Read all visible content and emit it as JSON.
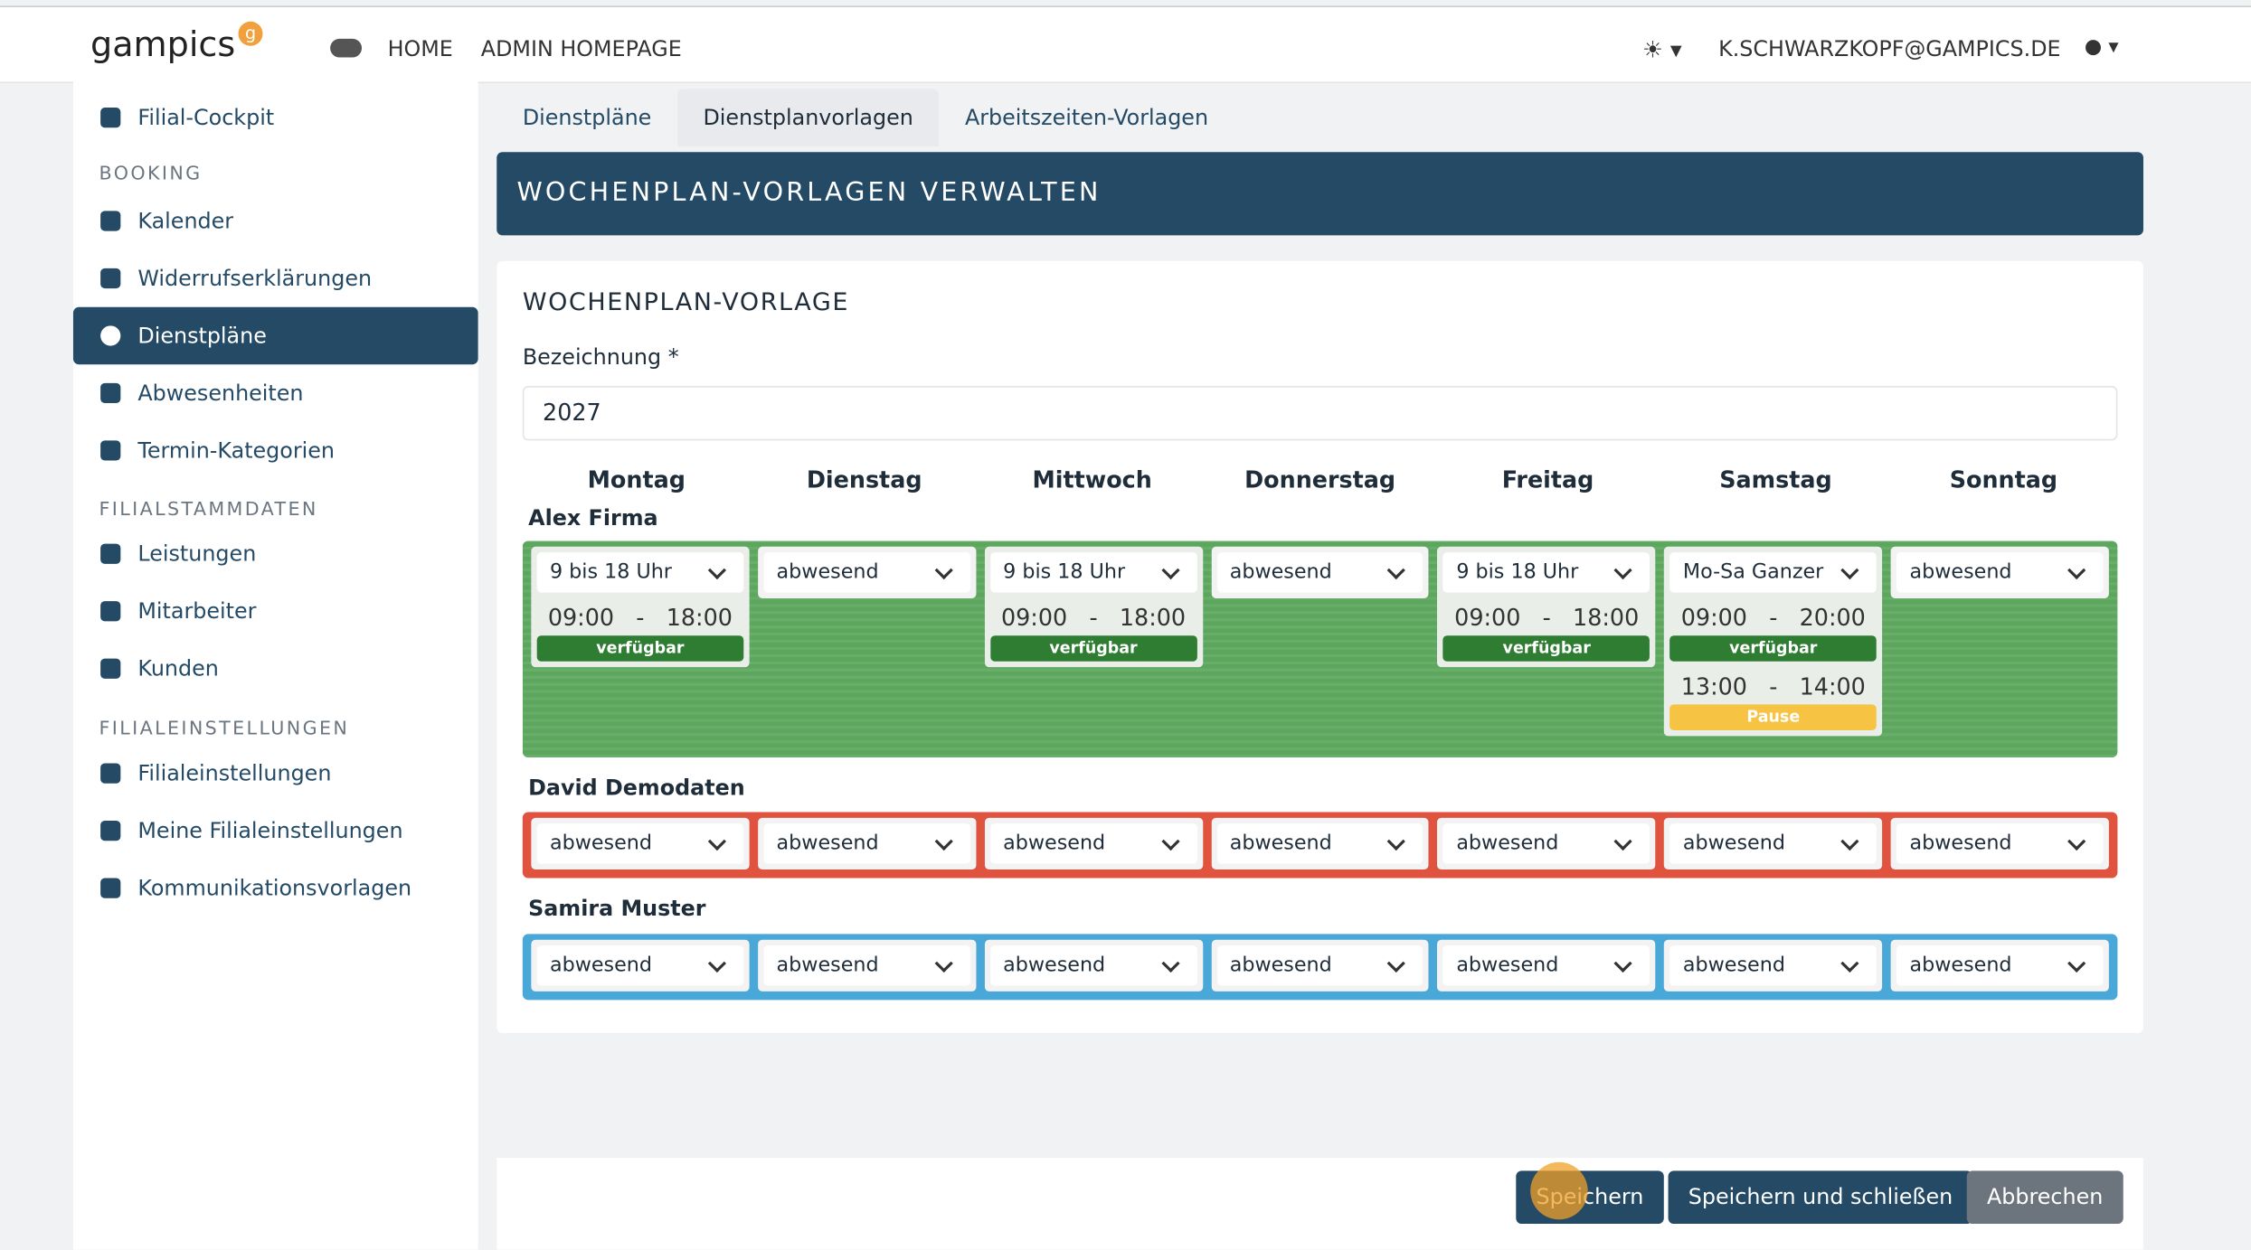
{
  "header": {
    "logo": "gampics",
    "logo_badge": "g",
    "nav": [
      "HOME",
      "ADMIN HOMEPAGE"
    ],
    "user": "K.SCHWARZKOPF@GAMPICS.DE"
  },
  "sidebar": {
    "entries": [
      {
        "label": "Filial-Cockpit"
      },
      {
        "heading": "BOOKING"
      },
      {
        "label": "Kalender"
      },
      {
        "label": "Widerrufserklärungen"
      },
      {
        "label": "Dienstpläne",
        "active": true
      },
      {
        "label": "Abwesenheiten"
      },
      {
        "label": "Termin-Kategorien"
      },
      {
        "heading": "FILIALSTAMMDATEN"
      },
      {
        "label": "Leistungen"
      },
      {
        "label": "Mitarbeiter"
      },
      {
        "label": "Kunden"
      },
      {
        "heading": "FILIALEINSTELLUNGEN"
      },
      {
        "label": "Filialeinstellungen"
      },
      {
        "label": "Meine Filialeinstellungen"
      },
      {
        "label": "Kommunikationsvorlagen"
      }
    ]
  },
  "tabs": [
    {
      "label": "Dienstpläne"
    },
    {
      "label": "Dienstplanvorlagen",
      "active": true
    },
    {
      "label": "Arbeitszeiten-Vorlagen"
    }
  ],
  "panel_title": "WOCHENPLAN-VORLAGEN VERWALTEN",
  "form": {
    "heading": "WOCHENPLAN-VORLAGE",
    "field_label": "Bezeichnung *",
    "field_value": "2027",
    "days": [
      "Montag",
      "Dienstag",
      "Mittwoch",
      "Donnerstag",
      "Freitag",
      "Samstag",
      "Sonntag"
    ],
    "employees": [
      {
        "name": "Alex Firma",
        "color": "#5ca65e",
        "cells": [
          {
            "select": "9 bis 18 Uhr",
            "slots": [
              {
                "start": "09:00",
                "sep": "-",
                "end": "18:00",
                "status": "verfügbar"
              }
            ]
          },
          {
            "select": "abwesend"
          },
          {
            "select": "9 bis 18 Uhr",
            "slots": [
              {
                "start": "09:00",
                "sep": "-",
                "end": "18:00",
                "status": "verfügbar"
              }
            ]
          },
          {
            "select": "abwesend"
          },
          {
            "select": "9 bis 18 Uhr",
            "slots": [
              {
                "start": "09:00",
                "sep": "-",
                "end": "18:00",
                "status": "verfügbar"
              }
            ]
          },
          {
            "select": "Mo-Sa Ganzer",
            "slots": [
              {
                "start": "09:00",
                "sep": "-",
                "end": "20:00",
                "status": "verfügbar"
              },
              {
                "start": "13:00",
                "sep": "-",
                "end": "14:00",
                "status": "Pause"
              }
            ]
          },
          {
            "select": "abwesend"
          }
        ]
      },
      {
        "name": "David Demodaten",
        "color": "#e0533f",
        "cells": [
          {
            "select": "abwesend"
          },
          {
            "select": "abwesend"
          },
          {
            "select": "abwesend"
          },
          {
            "select": "abwesend"
          },
          {
            "select": "abwesend"
          },
          {
            "select": "abwesend"
          },
          {
            "select": "abwesend"
          }
        ]
      },
      {
        "name": "Samira Muster",
        "color": "#4aa8d8",
        "cells": [
          {
            "select": "abwesend"
          },
          {
            "select": "abwesend"
          },
          {
            "select": "abwesend"
          },
          {
            "select": "abwesend"
          },
          {
            "select": "abwesend"
          },
          {
            "select": "abwesend"
          },
          {
            "select": "abwesend"
          }
        ]
      }
    ]
  },
  "buttons": [
    "Speichern",
    "Speichern und schließen",
    "Abbrechen"
  ]
}
